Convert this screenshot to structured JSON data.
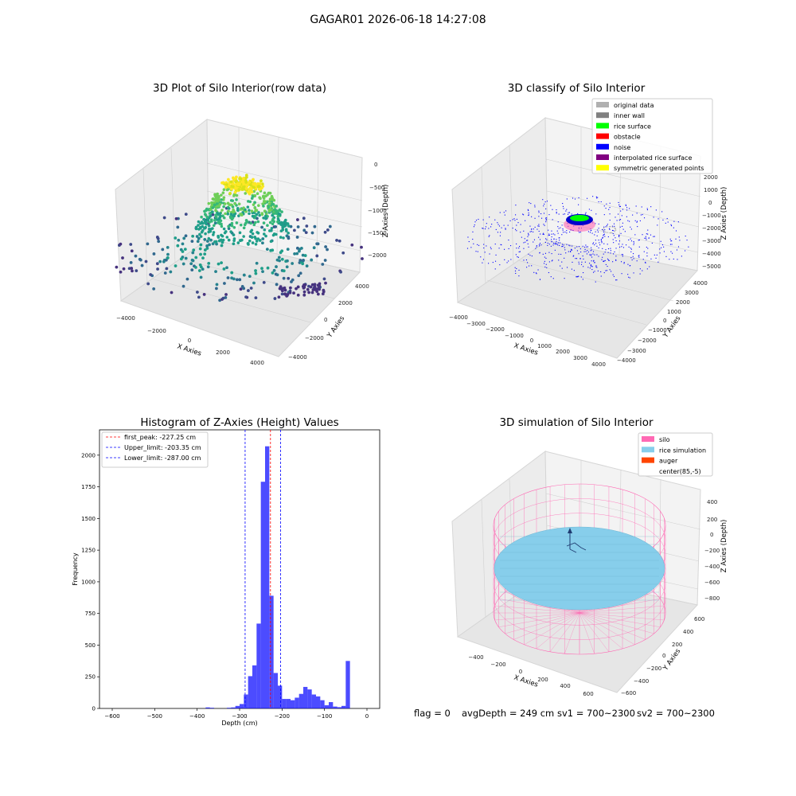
{
  "figure_title": "GAGAR01 2026-06-18 14:27:08",
  "panels": {
    "raw": {
      "title": "3D Plot of Silo Interior(row data)",
      "xlabel": "X Axies",
      "ylabel": "Y Axies",
      "zlabel": "Z Axies (Depth)",
      "xticks": [
        "−4000",
        "−2000",
        "0",
        "2000",
        "4000"
      ],
      "yticks": [
        "4000",
        "2000",
        "0",
        "−2000",
        "−4000"
      ],
      "zticks": [
        "0",
        "−500",
        "−1000",
        "−1500",
        "−2000"
      ]
    },
    "classify": {
      "title": "3D classify of Silo Interior",
      "xlabel": "X Axies",
      "ylabel": "Y Axies",
      "zlabel": "Z Axies (Depth)",
      "xticks": [
        "−4000",
        "−3000",
        "−2000",
        "−1000",
        "0",
        "1000",
        "2000",
        "3000",
        "4000"
      ],
      "yticks": [
        "4000",
        "3000",
        "2000",
        "1000",
        "0",
        "−1000",
        "−2000",
        "−3000",
        "−4000"
      ],
      "zticks": [
        "2000",
        "1000",
        "0",
        "−1000",
        "−2000",
        "−3000",
        "−4000",
        "−5000"
      ],
      "legend": [
        {
          "label": "original data",
          "color": "#b0b0b0"
        },
        {
          "label": "inner wall",
          "color": "#808080"
        },
        {
          "label": "rice surface",
          "color": "#00ff00"
        },
        {
          "label": "obstacle",
          "color": "#ff0000"
        },
        {
          "label": "noise",
          "color": "#0000ff"
        },
        {
          "label": "interpolated rice surface",
          "color": "#800080"
        },
        {
          "label": "symmetric generated points",
          "color": "#ffff00"
        }
      ]
    },
    "simulation": {
      "title": "3D simulation of Silo Interior",
      "xlabel": "X Axies",
      "ylabel": "Y Axies",
      "zlabel": "Z Axies (Depth)",
      "xticks": [
        "−400",
        "−200",
        "0",
        "200",
        "400",
        "600"
      ],
      "yticks": [
        "600",
        "400",
        "200",
        "0",
        "−200",
        "−400",
        "−600"
      ],
      "zticks": [
        "400",
        "200",
        "0",
        "−200",
        "−400",
        "−600",
        "−800"
      ],
      "legend": [
        {
          "label": "silo",
          "color": "#ff69b4"
        },
        {
          "label": "rice simulation",
          "color": "#87ceeb"
        },
        {
          "label": "auger",
          "color": "#ff4500"
        },
        {
          "label": "center(85,-5)",
          "color": "#ffffff"
        }
      ]
    }
  },
  "chart_data": {
    "type": "bar",
    "title": "Histogram of Z-Axies (Height) Values",
    "xlabel": "Depth (cm)",
    "ylabel": "Frequency",
    "xlim": [
      -630,
      30
    ],
    "ylim": [
      0,
      2200
    ],
    "xticks": [
      "−600",
      "−500",
      "−400",
      "−300",
      "−200",
      "−100",
      "0"
    ],
    "yticks": [
      "0",
      "250",
      "500",
      "750",
      "1000",
      "1250",
      "1500",
      "1750",
      "2000"
    ],
    "bar_color": "#0000ff",
    "bin_width": 10,
    "bin_starts": [
      -380,
      -370,
      -330,
      -320,
      -310,
      -300,
      -290,
      -280,
      -270,
      -260,
      -250,
      -240,
      -230,
      -220,
      -210,
      -200,
      -190,
      -180,
      -170,
      -160,
      -150,
      -140,
      -130,
      -120,
      -110,
      -100,
      -90,
      -80,
      -70,
      -60,
      -50,
      -40,
      -30,
      -20,
      -10
    ],
    "values": [
      8,
      5,
      5,
      8,
      20,
      35,
      110,
      255,
      340,
      670,
      1790,
      2070,
      890,
      280,
      180,
      75,
      75,
      65,
      85,
      115,
      170,
      150,
      110,
      95,
      65,
      25,
      50,
      15,
      10,
      20,
      375,
      0,
      0,
      0,
      0
    ],
    "vlines": [
      {
        "label": "first_peak: -227.25 cm",
        "x": -227.25,
        "color": "#ff0000"
      },
      {
        "label": "Upper_limit: -203.35 cm",
        "x": -203.35,
        "color": "#0000ff"
      },
      {
        "label": "Lower_limit: -287.00 cm",
        "x": -287.0,
        "color": "#0000ff"
      }
    ],
    "legend_position": "top-left"
  },
  "footer": {
    "flag": "flag = 0",
    "avg": "avgDepth = 249 cm",
    "sv1": "sv1 = 700~2300",
    "sv2": "sv2 = 700~2300"
  }
}
